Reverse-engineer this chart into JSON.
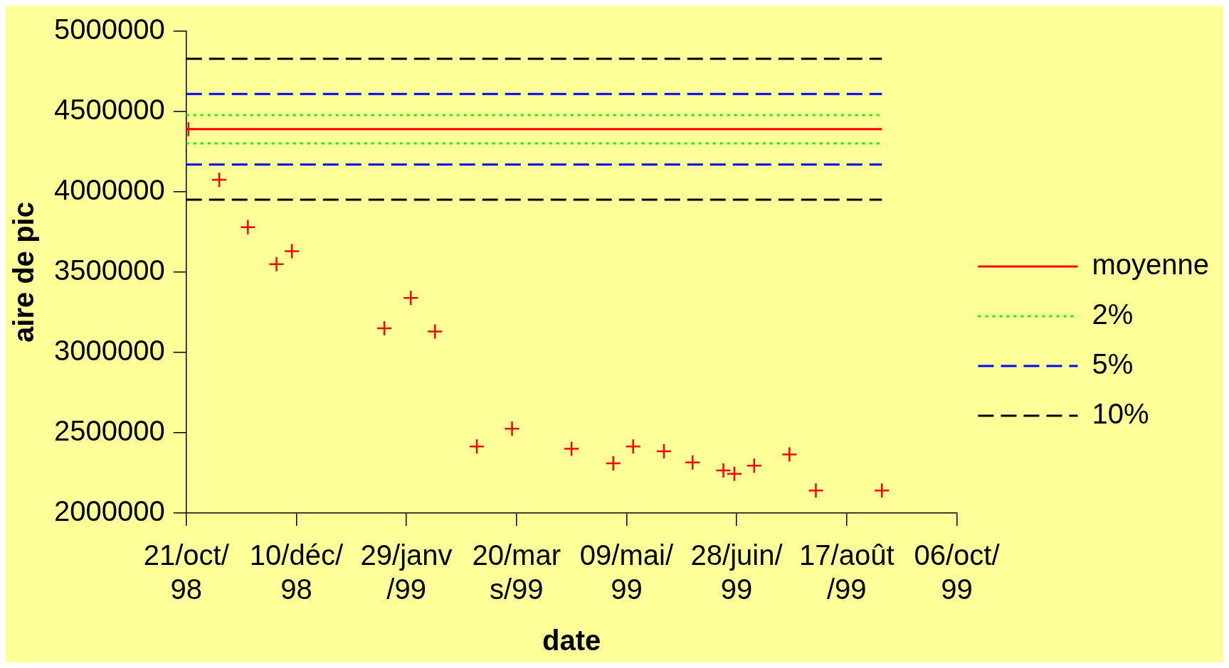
{
  "chart_data": {
    "type": "scatter",
    "xlabel": "date",
    "ylabel": "aire de pic",
    "xlim": [
      "1998-10-21",
      "1999-10-06"
    ],
    "xticks": [
      {
        "value": "1998-10-21",
        "label": "21/oct/\n98"
      },
      {
        "value": "1998-12-10",
        "label": "10/déc/\n98"
      },
      {
        "value": "1999-01-29",
        "label": "29/janv\n/99"
      },
      {
        "value": "1999-03-20",
        "label": "20/mar\ns/99"
      },
      {
        "value": "1999-05-09",
        "label": "09/mai/\n99"
      },
      {
        "value": "1999-06-28",
        "label": "28/juin/\n99"
      },
      {
        "value": "1999-08-17",
        "label": "17/août\n/99"
      },
      {
        "value": "1999-10-06",
        "label": "06/oct/\n99"
      }
    ],
    "ylim": [
      2000000,
      5000000
    ],
    "yticks": [
      2000000,
      2500000,
      3000000,
      3500000,
      4000000,
      4500000,
      5000000
    ],
    "grid": false,
    "legend": "right",
    "marker": "cross",
    "series": [
      {
        "color": "#ff0000",
        "x": [
          "1998-10-22",
          "1998-11-05",
          "1998-11-18",
          "1998-12-01",
          "1998-12-08",
          "1999-01-19",
          "1999-01-31",
          "1999-02-11",
          "1999-03-02",
          "1999-03-18",
          "1999-04-14",
          "1999-05-03",
          "1999-05-12",
          "1999-05-26",
          "1999-06-08",
          "1999-06-22",
          "1999-06-27",
          "1999-07-06",
          "1999-07-22",
          "1999-08-03",
          "1999-09-02"
        ],
        "values": [
          4390000,
          4075000,
          3780000,
          3550000,
          3630000,
          3150000,
          3340000,
          3130000,
          2415000,
          2525000,
          2400000,
          2310000,
          2415000,
          2385000,
          2315000,
          2265000,
          2245000,
          2295000,
          2365000,
          2140000,
          2140000
        ]
      },
      {
        "type": "line",
        "name": "moyenne",
        "color": "#ff0000",
        "line_style": "solid",
        "marker": "none",
        "x": [
          "1998-10-21",
          "1999-09-02"
        ],
        "values": [
          4390000,
          4390000
        ]
      },
      {
        "type": "line",
        "name": "2%",
        "color": "#00ff00",
        "line_style": "dotted",
        "marker": "none",
        "x": [
          "1998-10-21",
          "1999-09-02"
        ],
        "values": [
          4478000,
          4478000
        ]
      },
      {
        "type": "line",
        "color": "#00ff00",
        "line_style": "dotted",
        "marker": "none",
        "x": [
          "1998-10-21",
          "1999-09-02"
        ],
        "values": [
          4302000,
          4302000
        ]
      },
      {
        "type": "line",
        "name": "5%",
        "color": "#0000ff",
        "line_style": "dashed",
        "marker": "none",
        "x": [
          "1998-10-21",
          "1999-09-02"
        ],
        "values": [
          4610000,
          4610000
        ]
      },
      {
        "type": "line",
        "color": "#0000ff",
        "line_style": "dashed",
        "marker": "none",
        "x": [
          "1998-10-21",
          "1999-09-02"
        ],
        "values": [
          4170000,
          4170000
        ]
      },
      {
        "type": "line",
        "name": "10%",
        "color": "#000000",
        "line_style": "dashed",
        "marker": "none",
        "x": [
          "1998-10-21",
          "1999-09-02"
        ],
        "values": [
          4829000,
          4829000
        ]
      },
      {
        "type": "line",
        "color": "#000000",
        "line_style": "dashed",
        "marker": "none",
        "x": [
          "1998-10-21",
          "1999-09-02"
        ],
        "values": [
          3951000,
          3951000
        ]
      }
    ]
  }
}
